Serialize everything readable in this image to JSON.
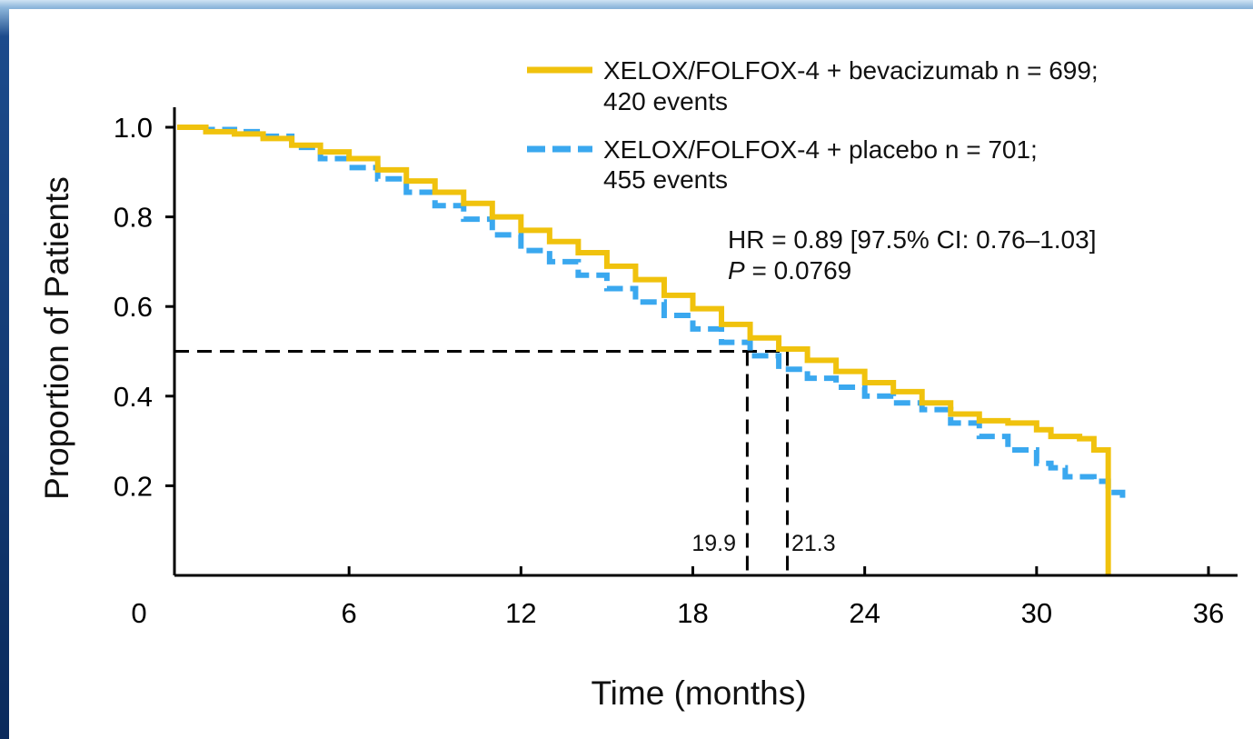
{
  "chart_data": {
    "type": "line",
    "subtype": "kaplan-meier",
    "xlabel": "Time (months)",
    "ylabel": "Proportion of Patients",
    "xlim": [
      0,
      36
    ],
    "ylim": [
      0,
      1.0
    ],
    "xticks": [
      0,
      6,
      12,
      18,
      24,
      30,
      36
    ],
    "xtick_labels": [
      "0",
      "6",
      "12",
      "18",
      "24",
      "30",
      "36"
    ],
    "yticks": [
      0.2,
      0.4,
      0.6,
      0.8,
      1.0
    ],
    "ytick_labels": [
      "0.2",
      "0.4",
      "0.6",
      "0.8",
      "1.0"
    ],
    "grid": false,
    "legend_position": "top-right",
    "series": [
      {
        "name_line1": "XELOX/FOLFOX-4 + bevacizumab n = 699;",
        "name_line2": "420 events",
        "color": "#f0c20d",
        "style": "solid",
        "points": [
          [
            0,
            1.0
          ],
          [
            1,
            0.99
          ],
          [
            2,
            0.985
          ],
          [
            3,
            0.975
          ],
          [
            4,
            0.96
          ],
          [
            5,
            0.945
          ],
          [
            6,
            0.93
          ],
          [
            7,
            0.905
          ],
          [
            8,
            0.88
          ],
          [
            9,
            0.855
          ],
          [
            10,
            0.83
          ],
          [
            11,
            0.8
          ],
          [
            12,
            0.77
          ],
          [
            13,
            0.745
          ],
          [
            14,
            0.72
          ],
          [
            15,
            0.69
          ],
          [
            16,
            0.66
          ],
          [
            17,
            0.625
          ],
          [
            18,
            0.595
          ],
          [
            19,
            0.56
          ],
          [
            20,
            0.53
          ],
          [
            21,
            0.505
          ],
          [
            22,
            0.48
          ],
          [
            23,
            0.455
          ],
          [
            24,
            0.43
          ],
          [
            25,
            0.41
          ],
          [
            26,
            0.385
          ],
          [
            27,
            0.36
          ],
          [
            28,
            0.345
          ],
          [
            29,
            0.34
          ],
          [
            30,
            0.325
          ],
          [
            30.5,
            0.31
          ],
          [
            31,
            0.31
          ],
          [
            31.5,
            0.305
          ],
          [
            32,
            0.28
          ],
          [
            32.5,
            0.28
          ],
          [
            32.5,
            0.0
          ]
        ]
      },
      {
        "name_line1": "XELOX/FOLFOX-4 + placebo n = 701;",
        "name_line2": "455 events",
        "color": "#3aa8ef",
        "style": "dashed",
        "points": [
          [
            0,
            1.0
          ],
          [
            1,
            0.995
          ],
          [
            2,
            0.99
          ],
          [
            3,
            0.98
          ],
          [
            4,
            0.955
          ],
          [
            5,
            0.93
          ],
          [
            6,
            0.91
          ],
          [
            7,
            0.885
          ],
          [
            8,
            0.855
          ],
          [
            9,
            0.825
          ],
          [
            10,
            0.795
          ],
          [
            11,
            0.76
          ],
          [
            12,
            0.725
          ],
          [
            13,
            0.7
          ],
          [
            14,
            0.67
          ],
          [
            15,
            0.64
          ],
          [
            16,
            0.61
          ],
          [
            17,
            0.58
          ],
          [
            18,
            0.55
          ],
          [
            19,
            0.52
          ],
          [
            20,
            0.49
          ],
          [
            21,
            0.46
          ],
          [
            22,
            0.44
          ],
          [
            23,
            0.42
          ],
          [
            24,
            0.4
          ],
          [
            25,
            0.385
          ],
          [
            26,
            0.37
          ],
          [
            27,
            0.34
          ],
          [
            28,
            0.31
          ],
          [
            29,
            0.28
          ],
          [
            30,
            0.25
          ],
          [
            30.5,
            0.24
          ],
          [
            31,
            0.22
          ],
          [
            32,
            0.21
          ],
          [
            32.5,
            0.185
          ],
          [
            33,
            0.17
          ]
        ]
      }
    ],
    "reference_lines": {
      "y": 0.5,
      "x_medians": [
        19.9,
        21.3
      ]
    },
    "median_labels": [
      "19.9",
      "21.3"
    ],
    "annotation": {
      "hr_text": "HR = 0.89 [97.5% CI: 0.76–1.03]",
      "p_symbol": "P",
      "p_text": " = 0.0769"
    }
  }
}
